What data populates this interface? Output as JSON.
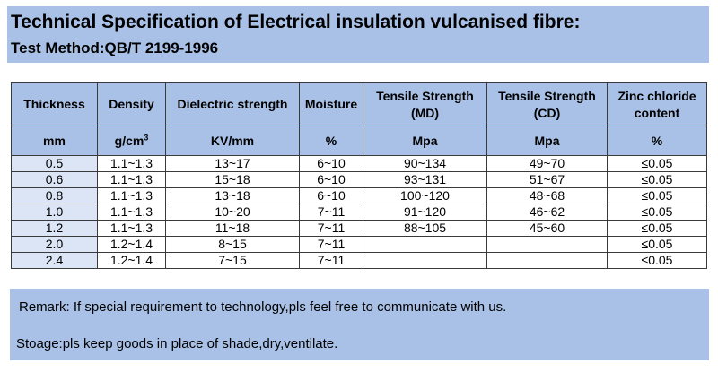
{
  "header": {
    "title": "Technical Specification of Electrical insulation vulcanised fibre:",
    "subtitle": "Test Method:QB/T 2199-1996"
  },
  "table": {
    "columns": [
      {
        "name": "Thickness",
        "unit": "mm"
      },
      {
        "name": "Density",
        "unit": "g/cm",
        "unit_sup": "3"
      },
      {
        "name": "Dielectric strength",
        "unit": "KV/mm"
      },
      {
        "name": "Moisture",
        "unit": "%"
      },
      {
        "name": "Tensile Strength (MD)",
        "unit": "Mpa"
      },
      {
        "name": "Tensile Strength (CD)",
        "unit": "Mpa"
      },
      {
        "name": "Zinc chloride content",
        "unit": "%"
      }
    ],
    "rows": [
      [
        "0.5",
        "1.1~1.3",
        "13~17",
        "6~10",
        "90~134",
        "49~70",
        "≤0.05"
      ],
      [
        "0.6",
        "1.1~1.3",
        "15~18",
        "6~10",
        "93~131",
        "51~67",
        "≤0.05"
      ],
      [
        "0.8",
        "1.1~1.3",
        "13~18",
        "6~10",
        "100~120",
        "48~68",
        "≤0.05"
      ],
      [
        "1.0",
        "1.1~1.3",
        "10~20",
        "7~11",
        "91~120",
        "46~62",
        "≤0.05"
      ],
      [
        "1.2",
        "1.1~1.3",
        "11~18",
        "7~11",
        "88~105",
        "45~60",
        "≤0.05"
      ],
      [
        "2.0",
        "1.2~1.4",
        "8~15",
        "7~11",
        "",
        "",
        "≤0.05"
      ],
      [
        "2.4",
        "1.2~1.4",
        "7~15",
        "7~11",
        "",
        "",
        "≤0.05"
      ]
    ]
  },
  "notes": {
    "remark": "Remark: If special requirement to technology,pls feel free to communicate with us.",
    "storage": "Stoage:pls keep goods in place of shade,dry,ventilate."
  },
  "colors": {
    "header_bg": "#a9c1e6",
    "first_column_bg": "#dbe5f5",
    "border": "#3a3a3a"
  }
}
